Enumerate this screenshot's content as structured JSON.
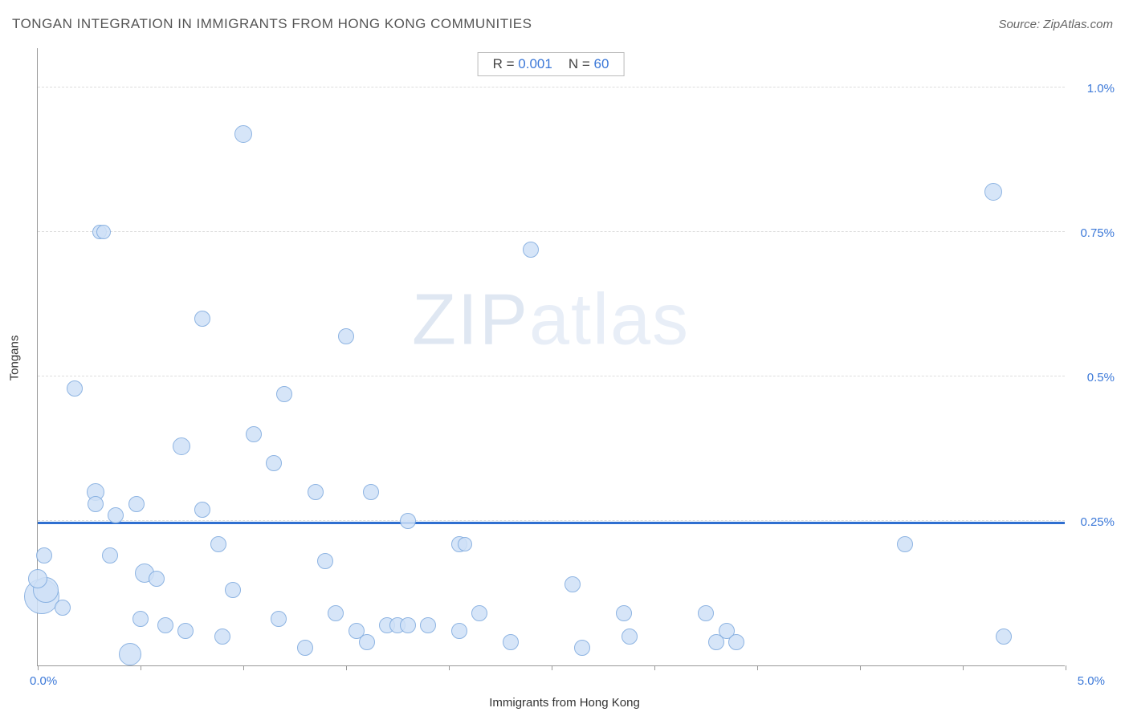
{
  "title": "TONGAN INTEGRATION IN IMMIGRANTS FROM HONG KONG COMMUNITIES",
  "source": "Source: ZipAtlas.com",
  "watermark_bold": "ZIP",
  "watermark_light": "atlas",
  "legend": {
    "r_label": "R =",
    "r_value": "0.001",
    "n_label": "N =",
    "n_value": "60"
  },
  "axes": {
    "x_label": "Immigrants from Hong Kong",
    "y_label": "Tongans",
    "x_min_label": "0.0%",
    "x_max_label": "5.0%",
    "y_tick_labels": [
      "0.25%",
      "0.5%",
      "0.75%",
      "1.0%"
    ]
  },
  "chart": {
    "type": "scatter",
    "xlim": [
      0.0,
      5.0
    ],
    "ylim": [
      0.0,
      1.07
    ],
    "y_gridlines": [
      0.25,
      0.5,
      0.75,
      1.0
    ],
    "x_tick_step": 0.5,
    "background_color": "#ffffff",
    "grid_color": "#dddddd",
    "axis_color": "#999999",
    "tick_label_color": "#3b78d8",
    "trendline": {
      "y": 0.245,
      "color": "#2f6fd0",
      "width": 3
    },
    "bubble_fill": "#cfe1f7",
    "bubble_stroke": "#7ba8de",
    "bubble_opacity": 0.85,
    "points": [
      {
        "x": 0.02,
        "y": 0.12,
        "r": 22
      },
      {
        "x": 0.04,
        "y": 0.13,
        "r": 16
      },
      {
        "x": 0.0,
        "y": 0.15,
        "r": 12
      },
      {
        "x": 0.03,
        "y": 0.19,
        "r": 10
      },
      {
        "x": 0.12,
        "y": 0.1,
        "r": 10
      },
      {
        "x": 0.18,
        "y": 0.48,
        "r": 10
      },
      {
        "x": 0.28,
        "y": 0.3,
        "r": 11
      },
      {
        "x": 0.28,
        "y": 0.28,
        "r": 10
      },
      {
        "x": 0.3,
        "y": 0.75,
        "r": 9
      },
      {
        "x": 0.32,
        "y": 0.75,
        "r": 9
      },
      {
        "x": 0.35,
        "y": 0.19,
        "r": 10
      },
      {
        "x": 0.38,
        "y": 0.26,
        "r": 10
      },
      {
        "x": 0.45,
        "y": 0.02,
        "r": 14
      },
      {
        "x": 0.48,
        "y": 0.28,
        "r": 10
      },
      {
        "x": 0.5,
        "y": 0.08,
        "r": 10
      },
      {
        "x": 0.52,
        "y": 0.16,
        "r": 12
      },
      {
        "x": 0.58,
        "y": 0.15,
        "r": 10
      },
      {
        "x": 0.62,
        "y": 0.07,
        "r": 10
      },
      {
        "x": 0.7,
        "y": 0.38,
        "r": 11
      },
      {
        "x": 0.72,
        "y": 0.06,
        "r": 10
      },
      {
        "x": 0.8,
        "y": 0.27,
        "r": 10
      },
      {
        "x": 0.8,
        "y": 0.6,
        "r": 10
      },
      {
        "x": 0.88,
        "y": 0.21,
        "r": 10
      },
      {
        "x": 0.9,
        "y": 0.05,
        "r": 10
      },
      {
        "x": 0.95,
        "y": 0.13,
        "r": 10
      },
      {
        "x": 1.0,
        "y": 0.92,
        "r": 11
      },
      {
        "x": 1.05,
        "y": 0.4,
        "r": 10
      },
      {
        "x": 1.15,
        "y": 0.35,
        "r": 10
      },
      {
        "x": 1.17,
        "y": 0.08,
        "r": 10
      },
      {
        "x": 1.2,
        "y": 0.47,
        "r": 10
      },
      {
        "x": 1.3,
        "y": 0.03,
        "r": 10
      },
      {
        "x": 1.35,
        "y": 0.3,
        "r": 10
      },
      {
        "x": 1.4,
        "y": 0.18,
        "r": 10
      },
      {
        "x": 1.45,
        "y": 0.09,
        "r": 10
      },
      {
        "x": 1.5,
        "y": 0.57,
        "r": 10
      },
      {
        "x": 1.55,
        "y": 0.06,
        "r": 10
      },
      {
        "x": 1.6,
        "y": 0.04,
        "r": 10
      },
      {
        "x": 1.62,
        "y": 0.3,
        "r": 10
      },
      {
        "x": 1.7,
        "y": 0.07,
        "r": 10
      },
      {
        "x": 1.75,
        "y": 0.07,
        "r": 10
      },
      {
        "x": 1.8,
        "y": 0.25,
        "r": 10
      },
      {
        "x": 1.8,
        "y": 0.07,
        "r": 10
      },
      {
        "x": 1.9,
        "y": 0.07,
        "r": 10
      },
      {
        "x": 2.05,
        "y": 0.06,
        "r": 10
      },
      {
        "x": 2.05,
        "y": 0.21,
        "r": 10
      },
      {
        "x": 2.08,
        "y": 0.21,
        "r": 9
      },
      {
        "x": 2.15,
        "y": 0.09,
        "r": 10
      },
      {
        "x": 2.3,
        "y": 0.04,
        "r": 10
      },
      {
        "x": 2.4,
        "y": 0.72,
        "r": 10
      },
      {
        "x": 2.6,
        "y": 0.14,
        "r": 10
      },
      {
        "x": 2.65,
        "y": 0.03,
        "r": 10
      },
      {
        "x": 2.85,
        "y": 0.09,
        "r": 10
      },
      {
        "x": 2.88,
        "y": 0.05,
        "r": 10
      },
      {
        "x": 3.25,
        "y": 0.09,
        "r": 10
      },
      {
        "x": 3.3,
        "y": 0.04,
        "r": 10
      },
      {
        "x": 3.35,
        "y": 0.06,
        "r": 10
      },
      {
        "x": 3.4,
        "y": 0.04,
        "r": 10
      },
      {
        "x": 4.22,
        "y": 0.21,
        "r": 10
      },
      {
        "x": 4.65,
        "y": 0.82,
        "r": 11
      },
      {
        "x": 4.7,
        "y": 0.05,
        "r": 10
      }
    ]
  }
}
